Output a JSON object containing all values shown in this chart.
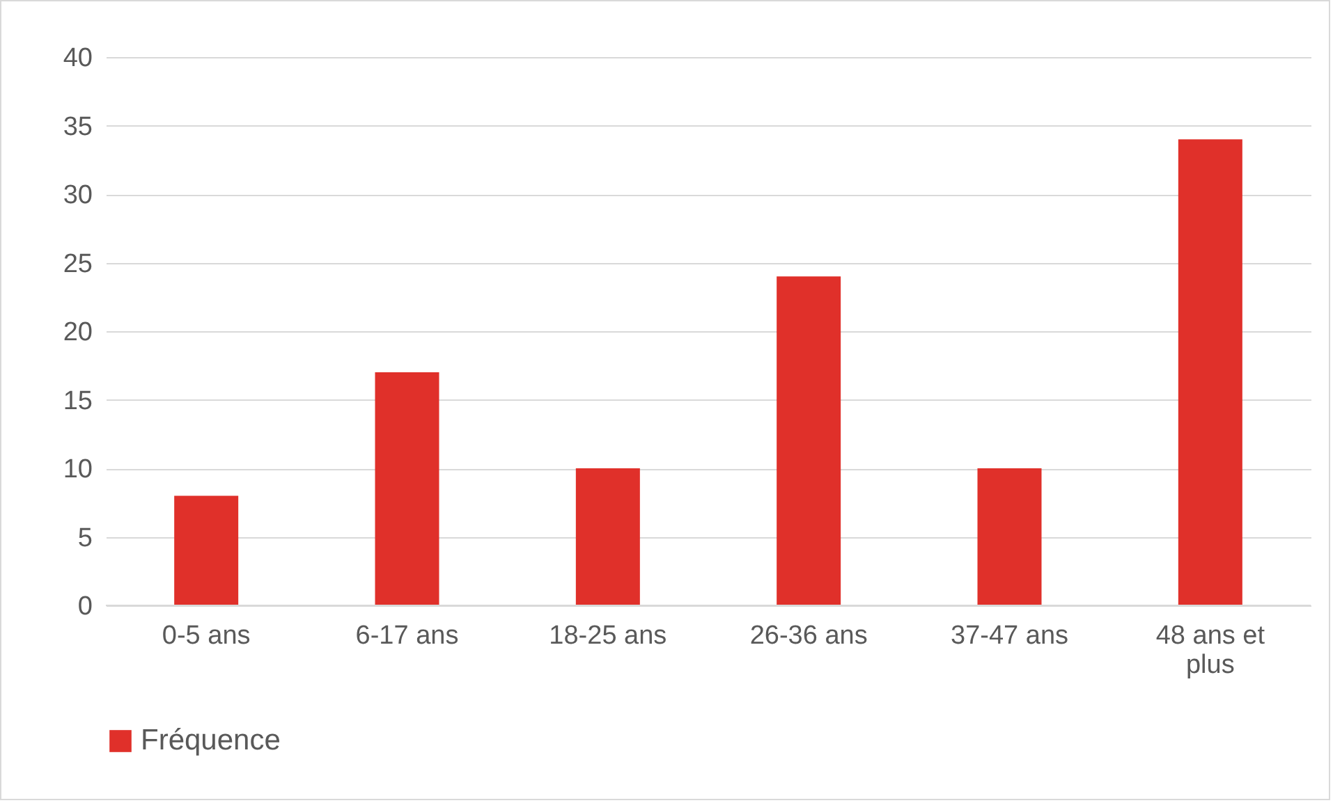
{
  "chart_data": {
    "type": "bar",
    "categories": [
      "0-5 ans",
      "6-17 ans",
      "18-25 ans",
      "26-36 ans",
      "37-47 ans",
      "48 ans et plus"
    ],
    "series": [
      {
        "name": "Fréquence",
        "color": "#e0302a",
        "values": [
          8,
          17,
          10,
          24,
          10,
          34
        ]
      }
    ],
    "ylim": [
      0,
      40
    ],
    "yticks": [
      0,
      5,
      10,
      15,
      20,
      25,
      30,
      35,
      40
    ],
    "grid": "y",
    "legend": "bottom"
  }
}
